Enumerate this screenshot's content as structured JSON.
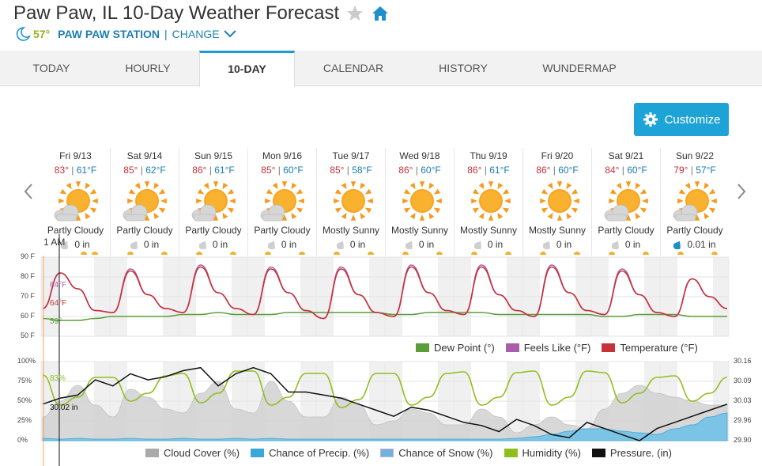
{
  "header": {
    "title": "Paw Paw, IL 10-Day Weather Forecast",
    "current_temp": "57°",
    "station": "PAW PAW STATION",
    "separator": "|",
    "change": "CHANGE",
    "icons": [
      "star-icon",
      "home-icon",
      "moon-icon",
      "chevron-down-icon"
    ]
  },
  "tabs": [
    {
      "label": "TODAY"
    },
    {
      "label": "HOURLY"
    },
    {
      "label": "10-DAY",
      "active": true
    },
    {
      "label": "CALENDAR"
    },
    {
      "label": "HISTORY"
    },
    {
      "label": "WUNDERMAP"
    }
  ],
  "customize": {
    "label": "Customize"
  },
  "days": [
    {
      "date": "Fri 9/13",
      "hi": "83°",
      "lo": "61°F",
      "cond": "Partly Cloudy",
      "precip": "0 in",
      "icon": "partly-cloudy"
    },
    {
      "date": "Sat 9/14",
      "hi": "85°",
      "lo": "62°F",
      "cond": "Partly Cloudy",
      "precip": "0 in",
      "icon": "partly-cloudy"
    },
    {
      "date": "Sun 9/15",
      "hi": "86°",
      "lo": "61°F",
      "cond": "Partly Cloudy",
      "precip": "0 in",
      "icon": "partly-cloudy"
    },
    {
      "date": "Mon 9/16",
      "hi": "85°",
      "lo": "60°F",
      "cond": "Partly Cloudy",
      "precip": "0 in",
      "icon": "partly-cloudy"
    },
    {
      "date": "Tue 9/17",
      "hi": "85°",
      "lo": "58°F",
      "cond": "Mostly Sunny",
      "precip": "0 in",
      "icon": "mostly-sunny"
    },
    {
      "date": "Wed 9/18",
      "hi": "86°",
      "lo": "60°F",
      "cond": "Mostly Sunny",
      "precip": "0 in",
      "icon": "mostly-sunny"
    },
    {
      "date": "Thu 9/19",
      "hi": "86°",
      "lo": "61°F",
      "cond": "Mostly Sunny",
      "precip": "0 in",
      "icon": "mostly-sunny"
    },
    {
      "date": "Fri 9/20",
      "hi": "86°",
      "lo": "60°F",
      "cond": "Mostly Sunny",
      "precip": "0 in",
      "icon": "mostly-sunny"
    },
    {
      "date": "Sat 9/21",
      "hi": "84°",
      "lo": "60°F",
      "cond": "Partly Cloudy",
      "precip": "0 in",
      "icon": "partly-cloudy"
    },
    {
      "date": "Sun 9/22",
      "hi": "79°",
      "lo": "57°F",
      "cond": "Partly Cloudy",
      "precip": "0.01 in",
      "icon": "partly-cloudy",
      "wet": true
    }
  ],
  "cursor": {
    "time": "1 AM",
    "feels": "64°F",
    "temp": "64°F",
    "dew": "59°",
    "humidity": "83%",
    "pressure": "30.02 in"
  },
  "colors": {
    "accent": "#1ea3d6",
    "temperature": "#c7313a",
    "feels_like": "#a85ea8",
    "dew_point": "#5a9e3a",
    "cloud_cover": "#aaaaaa",
    "precip": "#3aa7d9",
    "snow": "#d9a3d9",
    "humidity": "#8fbf1f",
    "pressure": "#111111"
  },
  "chart_data": [
    {
      "type": "line",
      "y_ticks": [
        "90 F",
        "80 F",
        "70 F",
        "60 F",
        "50 F"
      ],
      "ylim": [
        50,
        90
      ],
      "x_label": "",
      "series": [
        {
          "name": "Dew Point (°)",
          "values": [
            59,
            58,
            58,
            59,
            60,
            60,
            60,
            60,
            61,
            61,
            62,
            61,
            61,
            61,
            62,
            62,
            62,
            62,
            62,
            62,
            61,
            61,
            62,
            62,
            62,
            62,
            61,
            61,
            61,
            61,
            61,
            61,
            60,
            60,
            61,
            61,
            61,
            60,
            60,
            60
          ]
        },
        {
          "name": "Feels Like (°F)",
          "values": [
            64,
            82,
            74,
            63,
            62,
            84,
            71,
            64,
            62,
            86,
            72,
            64,
            61,
            85,
            72,
            63,
            59,
            85,
            71,
            62,
            60,
            86,
            72,
            63,
            61,
            86,
            71,
            63,
            60,
            86,
            72,
            63,
            61,
            84,
            71,
            62,
            60,
            79,
            70,
            64
          ]
        },
        {
          "name": "Temperature (°F)",
          "values": [
            64,
            82,
            74,
            63,
            62,
            83,
            71,
            64,
            62,
            85,
            72,
            64,
            61,
            84,
            72,
            63,
            59,
            84,
            71,
            62,
            60,
            85,
            72,
            63,
            61,
            85,
            71,
            63,
            60,
            85,
            72,
            63,
            61,
            83,
            71,
            62,
            60,
            79,
            70,
            64
          ]
        }
      ]
    },
    {
      "type": "area",
      "y_ticks_left": [
        "100%",
        "75%",
        "50%",
        "25%",
        "0%"
      ],
      "y_ticks_right": [
        "30.16",
        "30.09",
        "30.03",
        "29.96",
        "29.90"
      ],
      "ylim": [
        0,
        100
      ],
      "ylim_right": [
        29.9,
        30.16
      ],
      "series": [
        {
          "name": "Cloud Cover (%)",
          "values": [
            30,
            50,
            70,
            45,
            30,
            65,
            55,
            40,
            35,
            60,
            75,
            40,
            35,
            75,
            50,
            30,
            30,
            55,
            45,
            20,
            25,
            40,
            35,
            20,
            20,
            40,
            30,
            10,
            20,
            30,
            20,
            15,
            40,
            60,
            70,
            60,
            55,
            50,
            45,
            45
          ]
        },
        {
          "name": "Chance of Precip. (%)",
          "values": [
            3,
            2,
            3,
            2,
            2,
            3,
            2,
            2,
            3,
            2,
            2,
            3,
            2,
            3,
            2,
            2,
            2,
            2,
            2,
            2,
            2,
            2,
            2,
            2,
            2,
            2,
            2,
            3,
            5,
            8,
            12,
            15,
            15,
            12,
            10,
            8,
            15,
            20,
            30,
            35
          ]
        },
        {
          "name": "Chance of Snow (%)",
          "values": [
            0,
            0,
            0,
            0,
            0,
            0,
            0,
            0,
            0,
            0,
            0,
            0,
            0,
            0,
            0,
            0,
            0,
            0,
            0,
            0,
            0,
            0,
            0,
            0,
            0,
            0,
            0,
            0,
            0,
            0,
            0,
            0,
            0,
            0,
            0,
            0,
            0,
            0,
            0,
            0
          ]
        },
        {
          "name": "Humidity (%)",
          "values": [
            83,
            45,
            55,
            80,
            80,
            50,
            60,
            82,
            85,
            48,
            60,
            88,
            88,
            45,
            55,
            85,
            85,
            42,
            52,
            85,
            85,
            45,
            55,
            85,
            87,
            45,
            55,
            86,
            88,
            45,
            55,
            88,
            86,
            48,
            60,
            80,
            82,
            50,
            60,
            80
          ]
        },
        {
          "name": "Pressure. (in)",
          "values": [
            30.02,
            30.04,
            30.05,
            30.1,
            30.08,
            30.12,
            30.1,
            30.11,
            30.13,
            30.14,
            30.08,
            30.12,
            30.14,
            30.12,
            30.06,
            30.06,
            30.05,
            30.04,
            30.02,
            30.0,
            29.98,
            30.01,
            30.0,
            29.98,
            29.96,
            29.95,
            29.93,
            29.97,
            29.95,
            29.92,
            29.91,
            29.96,
            29.94,
            29.92,
            29.9,
            29.94,
            29.96,
            29.98,
            30.0,
            30.02
          ]
        }
      ]
    }
  ]
}
